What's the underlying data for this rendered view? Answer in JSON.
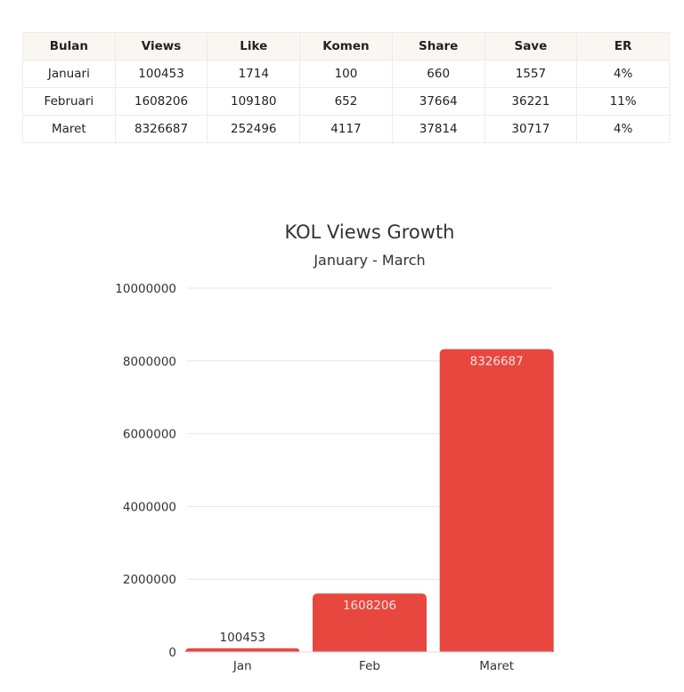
{
  "table": {
    "headers": [
      "Bulan",
      "Views",
      "Like",
      "Komen",
      "Share",
      "Save",
      "ER"
    ],
    "rows": [
      [
        "Januari",
        "100453",
        "1714",
        "100",
        "660",
        "1557",
        "4%"
      ],
      [
        "Februari",
        "1608206",
        "109180",
        "652",
        "37664",
        "36221",
        "11%"
      ],
      [
        "Maret",
        "8326687",
        "252496",
        "4117",
        "37814",
        "30717",
        "4%"
      ]
    ]
  },
  "chart_data": {
    "type": "bar",
    "title": "KOL Views Growth",
    "subtitle": "January - March",
    "categories": [
      "Jan",
      "Feb",
      "Maret"
    ],
    "values": [
      100453,
      1608206,
      8326687
    ],
    "data_labels": [
      "100453",
      "1608206",
      "8326687"
    ],
    "yticks": [
      "0",
      "2000000",
      "4000000",
      "6000000",
      "8000000",
      "10000000"
    ],
    "ylim": [
      0,
      10000000
    ],
    "grid": true,
    "bar_color": "#e8473f"
  }
}
